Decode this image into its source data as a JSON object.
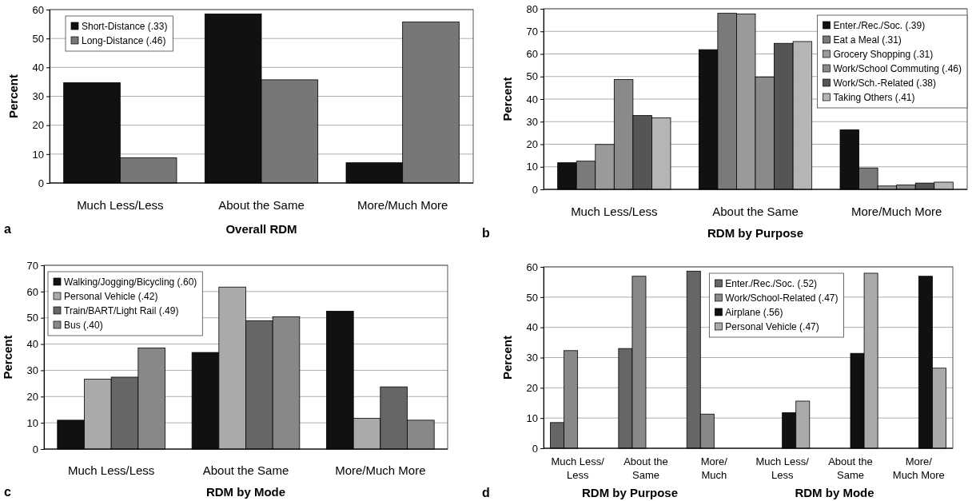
{
  "chart_data": [
    {
      "type": "bar",
      "xlabel": "Overall RDM",
      "ylabel": "Percent",
      "categories": [
        "Much Less/Less",
        "About the Same",
        "More/Much More"
      ],
      "series": [
        {
          "name": "Short-Distance (.33)",
          "color": "#111111",
          "values": [
            34.7,
            58.5,
            7
          ]
        },
        {
          "name": "Long-Distance (.46)",
          "color": "#777777",
          "values": [
            8.7,
            35.7,
            55.7
          ]
        }
      ],
      "ylim": [
        0,
        60
      ],
      "yticks": [
        0,
        10,
        20,
        30,
        40,
        50,
        60
      ],
      "grid": "y",
      "legend": "top left",
      "annotations": [
        "a"
      ]
    },
    {
      "type": "bar",
      "xlabel": "RDM by Purpose",
      "ylabel": "Percent",
      "categories": [
        "Much Less/Less",
        "About the Same",
        "More/Much More"
      ],
      "series": [
        {
          "name": "Enter./Rec./Soc. (.39)",
          "color": "#111111",
          "values": [
            11.8,
            61.9,
            26.4
          ]
        },
        {
          "name": "Eat a Meal (.31)",
          "color": "#7a7a7a",
          "values": [
            12.5,
            78,
            9.5
          ]
        },
        {
          "name": "Grocery Shopping (.31)",
          "color": "#9a9a9a",
          "values": [
            19.9,
            77.7,
            1.5
          ]
        },
        {
          "name": "Work/School Commuting (.46)",
          "color": "#8a8a8a",
          "values": [
            48.7,
            49.8,
            2
          ]
        },
        {
          "name": "Work/Sch.-Related (.38)",
          "color": "#555555",
          "values": [
            32.7,
            64.7,
            2.8
          ]
        },
        {
          "name": "Taking Others (.41)",
          "color": "#b5b5b5",
          "values": [
            31.7,
            65.5,
            3.2
          ]
        }
      ],
      "ylim": [
        0,
        80
      ],
      "yticks": [
        0,
        10,
        20,
        30,
        40,
        50,
        60,
        70,
        80
      ],
      "grid": "y",
      "legend": "top right",
      "annotations": [
        "b"
      ]
    },
    {
      "type": "bar",
      "xlabel": "RDM by Mode",
      "ylabel": "Percent",
      "categories": [
        "Much Less/Less",
        "About the Same",
        "More/Much More"
      ],
      "series": [
        {
          "name": "Walking/Jogging/Bicycling (.60)",
          "color": "#111111",
          "values": [
            11,
            36.8,
            52.5
          ]
        },
        {
          "name": "Personal Vehicle (.42)",
          "color": "#aaaaaa",
          "values": [
            26.6,
            61.7,
            11.7
          ]
        },
        {
          "name": "Train/BART/Light Rail (.49)",
          "color": "#666666",
          "values": [
            27.4,
            48.9,
            23.7
          ]
        },
        {
          "name": "Bus (.40)",
          "color": "#888888",
          "values": [
            38.5,
            50.4,
            11
          ]
        }
      ],
      "ylim": [
        0,
        70
      ],
      "yticks": [
        0,
        10,
        20,
        30,
        40,
        50,
        60,
        70
      ],
      "grid": "y",
      "legend": "top left",
      "annotations": [
        "c"
      ]
    },
    {
      "type": "bar",
      "ylabel": "Percent",
      "categories": [
        "Much Less/Less",
        "About the Same",
        "More/Much",
        "Much Less/Less",
        "About the Same",
        "More/Much More"
      ],
      "series": [
        {
          "name": "Enter./Rec./Soc. (.52)",
          "color": "#666666",
          "values": [
            8.5,
            33,
            58.6,
            null,
            null,
            null
          ]
        },
        {
          "name": "Work/School-Related (.47)",
          "color": "#888888",
          "values": [
            32.3,
            56.9,
            11.3,
            null,
            null,
            null
          ]
        },
        {
          "name": "Airplane (.56)",
          "color": "#111111",
          "values": [
            null,
            null,
            null,
            11.8,
            31.4,
            56.9
          ]
        },
        {
          "name": "Personal Vehicle (.47)",
          "color": "#aaaaaa",
          "values": [
            null,
            null,
            null,
            15.6,
            57.9,
            26.5
          ]
        }
      ],
      "ylim": [
        0,
        60
      ],
      "yticks": [
        0,
        10,
        20,
        30,
        40,
        50,
        60
      ],
      "grid": "y",
      "legend": "top",
      "annotations": [
        "d",
        "RDM by Purpose",
        "RDM by Mode"
      ]
    }
  ]
}
